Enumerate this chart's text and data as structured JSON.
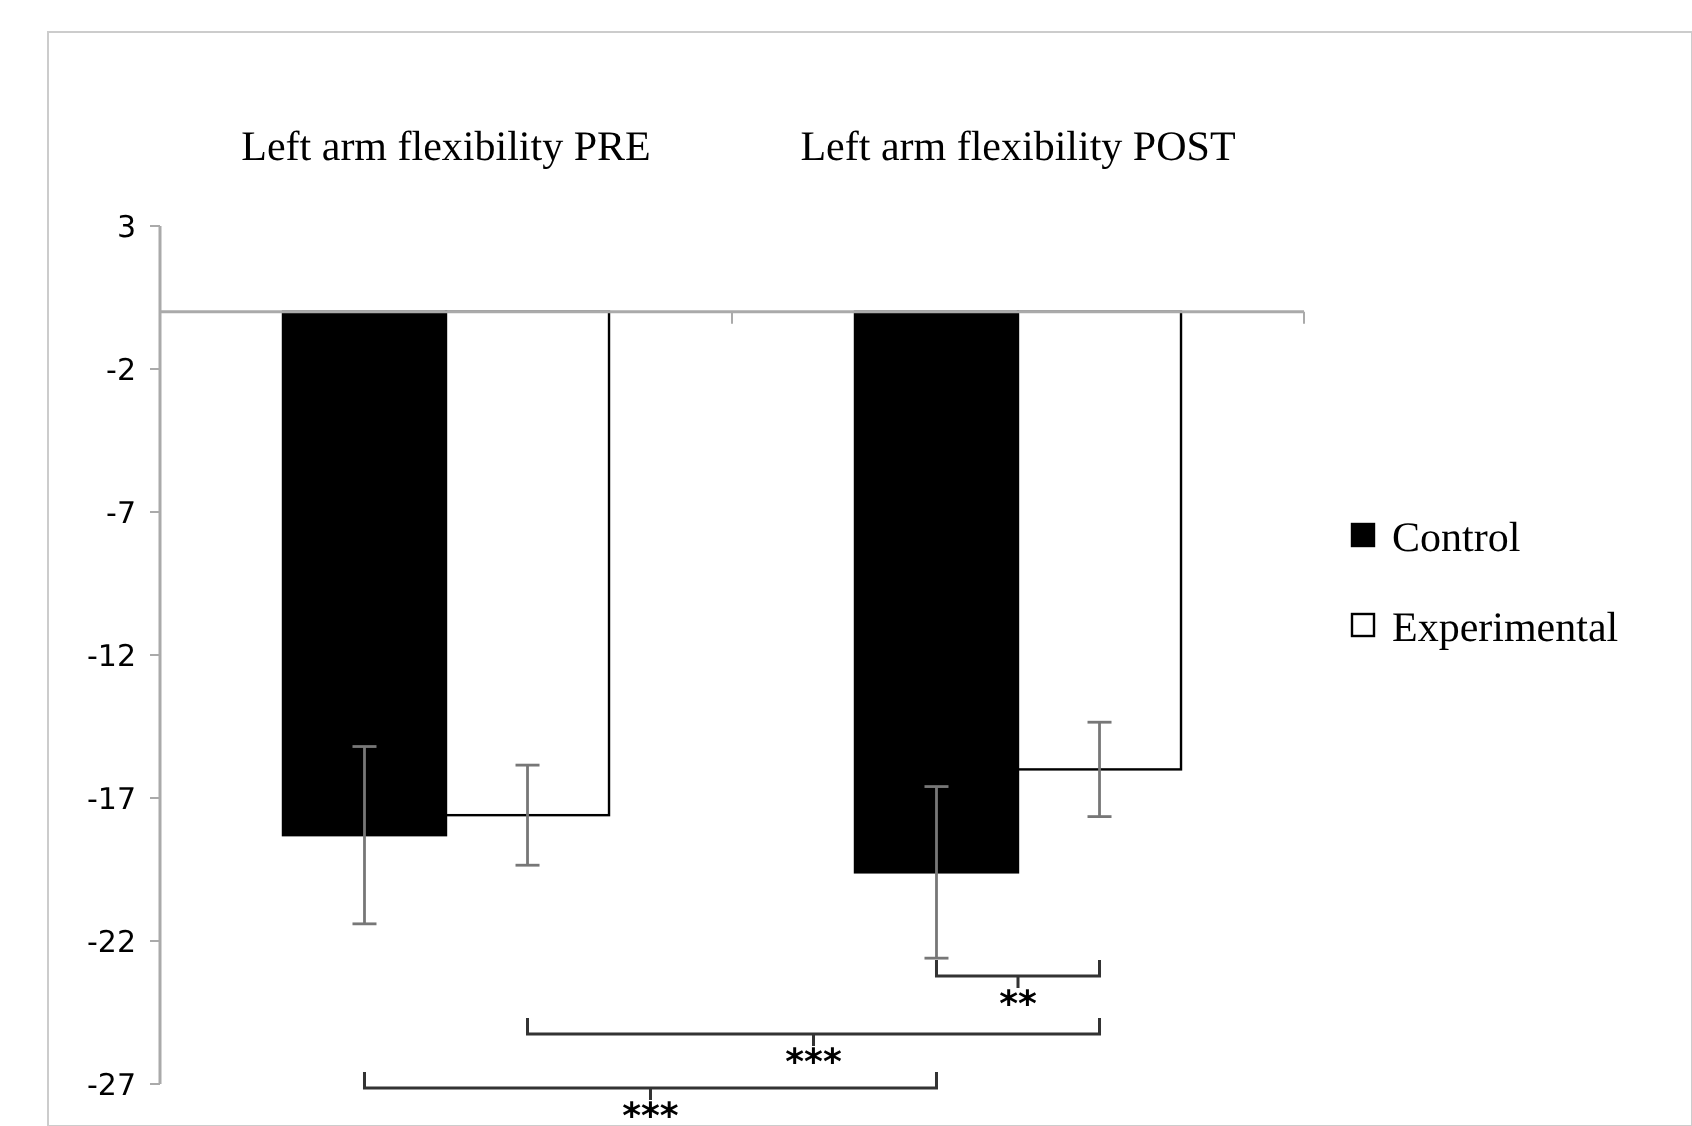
{
  "chart_data": {
    "type": "bar",
    "categories": [
      "Left arm flexibility PRE",
      "Left arm flexibility POST"
    ],
    "series": [
      {
        "name": "Control",
        "color": "#000000",
        "values": [
          -18.3,
          -19.6
        ],
        "errors": [
          3.1,
          3.0
        ]
      },
      {
        "name": "Experimental",
        "color": "#ffffff",
        "values": [
          -17.6,
          -16.0
        ],
        "errors": [
          1.75,
          1.65
        ]
      }
    ],
    "ylim": [
      -27,
      3
    ],
    "yticks": [
      3,
      -2,
      -7,
      -12,
      -17,
      -22,
      -27
    ],
    "grid": false,
    "legend": "right",
    "annotations": [
      "**",
      "***",
      "***"
    ]
  }
}
